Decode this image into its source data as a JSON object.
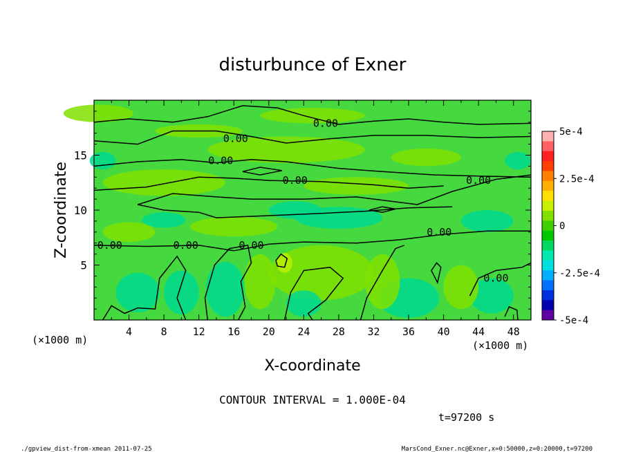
{
  "chart_data": {
    "type": "heatmap",
    "title": "disturbunce of Exner",
    "xlabel": "X-coordinate",
    "ylabel": "Z-coordinate",
    "x_unit": "(×1000 m)",
    "y_unit": "(×1000 m)",
    "xlim": [
      0,
      50
    ],
    "ylim": [
      0,
      20
    ],
    "x_ticks": [
      4,
      8,
      12,
      16,
      20,
      24,
      28,
      32,
      36,
      40,
      44,
      48
    ],
    "y_ticks": [
      5,
      10,
      15
    ],
    "contour_interval_text": "CONTOUR INTERVAL = 1.000E-04",
    "time_text": "t=97200 s",
    "contour_labels": [
      {
        "text": "0.00",
        "x": 26.5,
        "z": 17.9
      },
      {
        "text": "0.00",
        "x": 16.2,
        "z": 16.5
      },
      {
        "text": "0.00",
        "x": 14.5,
        "z": 14.5
      },
      {
        "text": "0.00",
        "x": 23.0,
        "z": 12.7
      },
      {
        "text": "0.00",
        "x": 44.0,
        "z": 12.7
      },
      {
        "text": "0.00",
        "x": 39.5,
        "z": 8.0
      },
      {
        "text": "0.00",
        "x": 1.8,
        "z": 6.8
      },
      {
        "text": "0.00",
        "x": 10.5,
        "z": 6.8
      },
      {
        "text": "0.00",
        "x": 18.0,
        "z": 6.8
      },
      {
        "text": "0.00",
        "x": 46.0,
        "z": 3.8
      }
    ],
    "colorbar": {
      "range": [
        -0.0005,
        0.0005
      ],
      "tick_labels": [
        "5e-4",
        "2.5e-4",
        "0",
        "-2.5e-4",
        "-5e-4"
      ],
      "tick_values": [
        0.0005,
        0.00025,
        0,
        -0.00025,
        -0.0005
      ],
      "colors": [
        "#ffb0b0",
        "#ff6060",
        "#ff2020",
        "#ff4000",
        "#ff8000",
        "#ffb000",
        "#ffe000",
        "#c8f000",
        "#80e000",
        "#40d000",
        "#00c800",
        "#00d860",
        "#00e8b0",
        "#00e0e0",
        "#00b0ff",
        "#0070ff",
        "#0030e0",
        "#0000b0",
        "#6000a0"
      ]
    },
    "field_colors": {
      "base": "#46d93f",
      "positive": "#80e000",
      "negative": "#00d890",
      "strong_positive": "#b8f000"
    }
  },
  "footer": {
    "left": "./gpview_dist-from-xmean  2011-07-25",
    "right": "MarsCond_Exner.nc@Exner,x=0:50000,z=0:20000,t=97200"
  }
}
